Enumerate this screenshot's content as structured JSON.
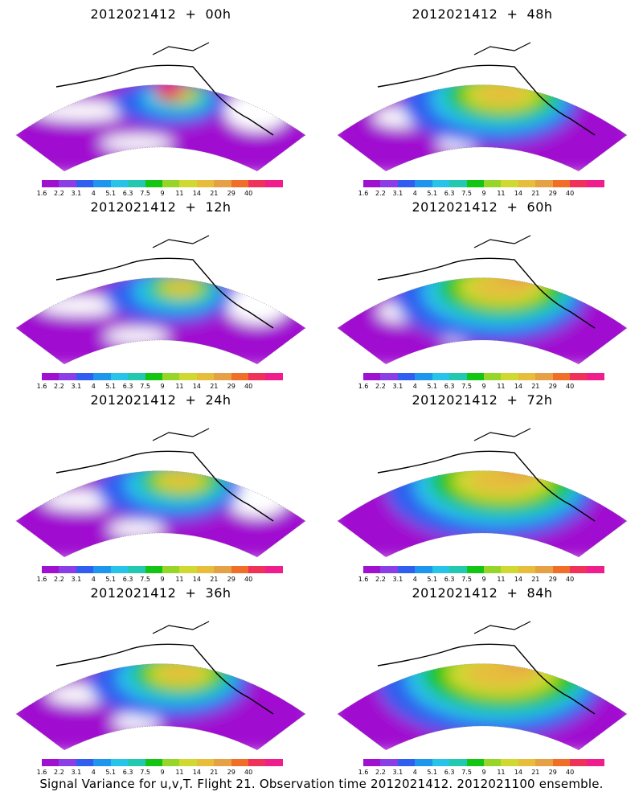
{
  "panels": [
    {
      "title": "2012021412  +  00h",
      "level": 0
    },
    {
      "title": "2012021412  +  12h",
      "level": 1
    },
    {
      "title": "2012021412  +  24h",
      "level": 2
    },
    {
      "title": "2012021412  +  36h",
      "level": 3
    },
    {
      "title": "2012021412  +  48h",
      "level": 4
    },
    {
      "title": "2012021412  +  60h",
      "level": 5
    },
    {
      "title": "2012021412  +  72h",
      "level": 6
    },
    {
      "title": "2012021412  +  84h",
      "level": 7
    }
  ],
  "colorbar": {
    "colors": [
      "#a010d0",
      "#8c3ee6",
      "#2f5ef0",
      "#1e96ee",
      "#28c3e8",
      "#22c8b0",
      "#14c514",
      "#96d628",
      "#d0d832",
      "#e6be3c",
      "#e6a046",
      "#f06e28",
      "#f0325a",
      "#f01e8c"
    ],
    "labels": [
      "1.6",
      "2.2",
      "3.1",
      "4",
      "5.1",
      "6.3",
      "7.5",
      "9",
      "11",
      "14",
      "21",
      "29",
      "40"
    ]
  },
  "footer": "Signal Variance for u,v,T. Flight 21. Observation time 2012021412. 2012021100 ensemble."
}
